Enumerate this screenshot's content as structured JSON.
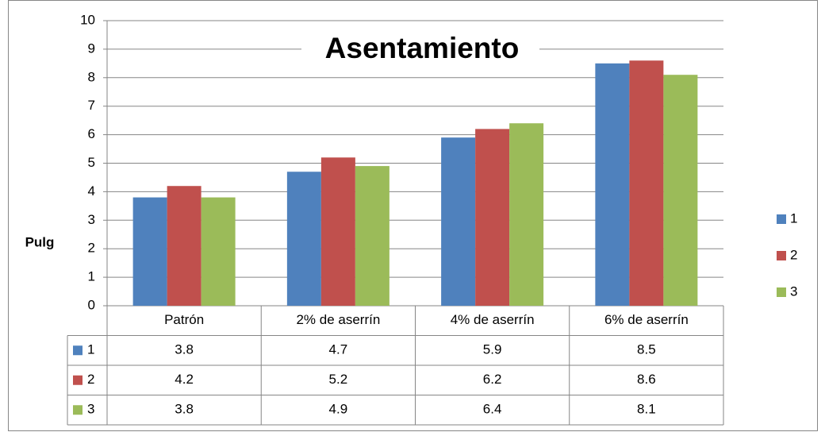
{
  "chart_data": {
    "type": "bar",
    "title": "Asentamiento",
    "y_label": "Pulg",
    "categories": [
      "Patrón",
      "2% de aserrín",
      "4% de aserrín",
      "6% de aserrín"
    ],
    "series": [
      {
        "name": "1",
        "color": "#4f81bd",
        "values": [
          3.8,
          4.7,
          5.9,
          8.5
        ]
      },
      {
        "name": "2",
        "color": "#c0504d",
        "values": [
          4.2,
          5.2,
          6.2,
          8.6
        ]
      },
      {
        "name": "3",
        "color": "#9bbb59",
        "values": [
          3.8,
          4.9,
          6.4,
          8.1
        ]
      }
    ],
    "ylim": [
      0,
      10
    ],
    "yticks": [
      0,
      1,
      2,
      3,
      4,
      5,
      6,
      7,
      8,
      9,
      10
    ],
    "grid": true,
    "legend": "right",
    "data_table": true
  }
}
